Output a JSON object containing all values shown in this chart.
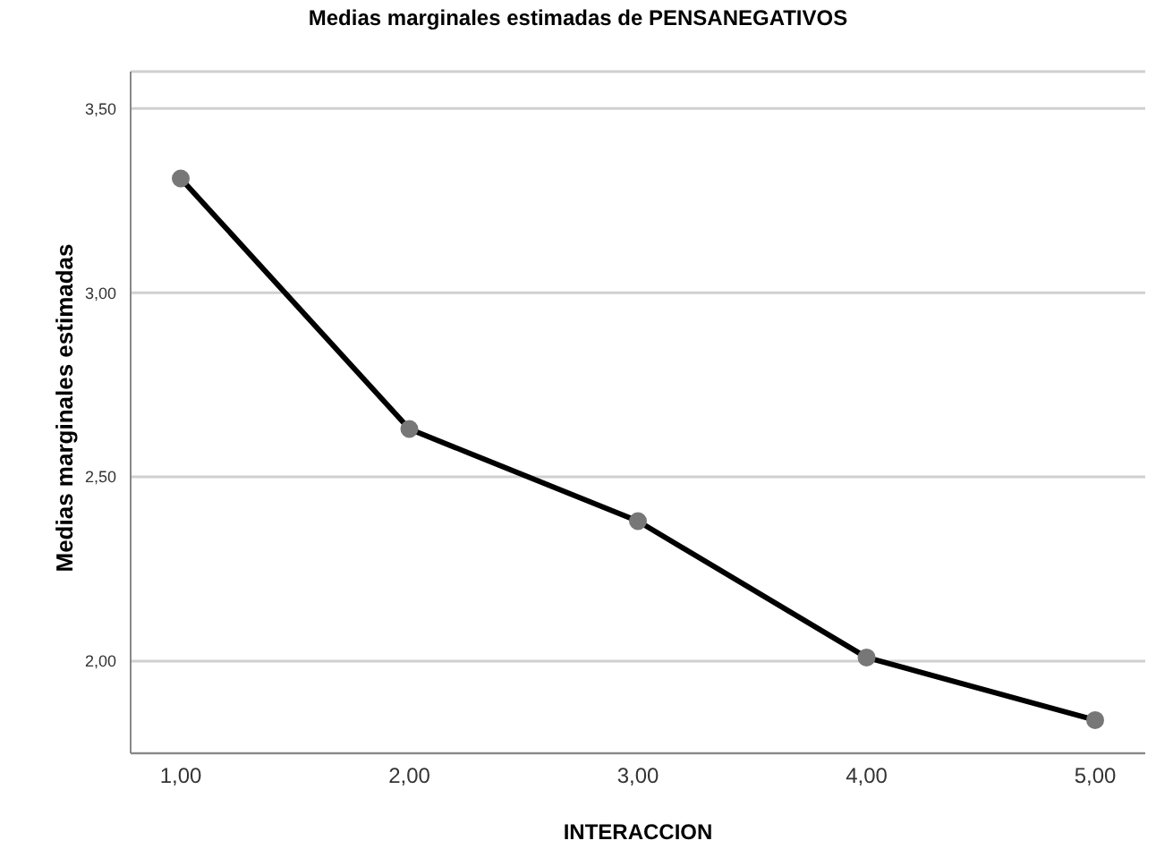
{
  "chart_data": {
    "type": "line",
    "title": "Medias marginales estimadas de PENSANEGATIVOS",
    "xlabel": "INTERACCION",
    "ylabel": "Medias marginales estimadas",
    "categories": [
      "1,00",
      "2,00",
      "3,00",
      "4,00",
      "5,00"
    ],
    "series": [
      {
        "color": "#000000",
        "values": [
          3.31,
          2.63,
          2.38,
          2.01,
          1.84
        ]
      }
    ],
    "ylim": [
      1.75,
      3.6
    ],
    "yticks": [
      {
        "value": 2,
        "label": "2,00"
      },
      {
        "value": 2.5,
        "label": "2,50"
      },
      {
        "value": 3,
        "label": "3,00"
      },
      {
        "value": 3.5,
        "label": "3,50"
      }
    ],
    "grid": "y",
    "legend": false,
    "marker": "circle",
    "line_style": "solid"
  }
}
